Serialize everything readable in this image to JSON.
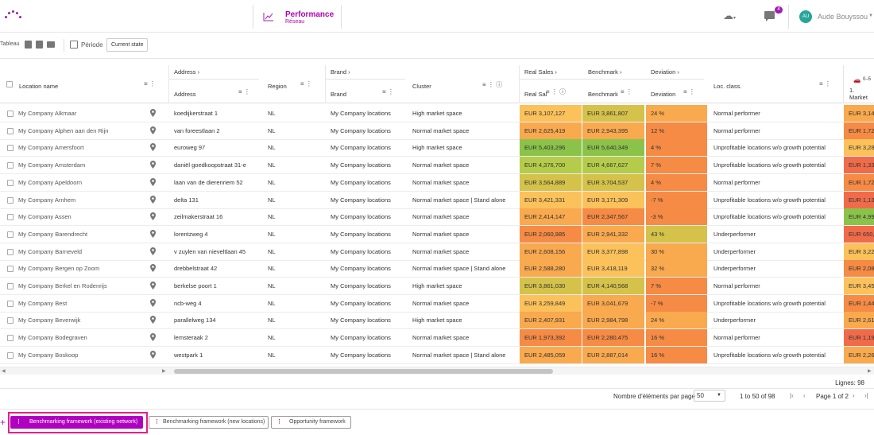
{
  "header": {
    "module_title": "Performance",
    "module_subtitle": "Réseau",
    "notification_count": "4",
    "user_initials": "AU",
    "user_name": "Aude Bouyssou"
  },
  "toolbar": {
    "tableau_label": "Tableau",
    "periode_label": "Période",
    "current_state": "Current state"
  },
  "grid": {
    "group_headers": {
      "address": "Address",
      "brand": "Brand",
      "real_sales": "Real Sales",
      "benchmark": "Benchmark",
      "deviation": "Deviation",
      "extra": "0–5",
      "extra2": "1. Market"
    },
    "columns": {
      "location_name": "Location name",
      "address": "Address",
      "region": "Region",
      "brand": "Brand",
      "cluster": "Cluster",
      "real_sal": "Real Sal",
      "benchmark": "Benchmark",
      "deviation": "Deviation",
      "loc_class": "Loc. class."
    },
    "colors": {
      "green_dark": "#8bc34a",
      "green_light": "#b5cc4a",
      "yellow": "#d4c24a",
      "orange_light": "#fbc15b",
      "orange": "#f9a94e",
      "orange_dark": "#f58b45",
      "red": "#f06b4a"
    },
    "rows": [
      {
        "name": "My Company Alkmaar",
        "address": "koedijkerstraat 1",
        "region": "NL",
        "brand": "My Company locations",
        "cluster": "High market space",
        "real": "EUR 3,107,127",
        "bench": "EUR 3,861,807",
        "dev": "24 %",
        "cls": "Normal performer",
        "extra": "EUR 3,14",
        "c_real": "#fbc15b",
        "c_bench": "#d4c24a",
        "c_dev": "#f9a94e",
        "c_extra": "#f9a94e"
      },
      {
        "name": "My Company Alphen aan den Rijn",
        "address": "van foreestlaan 2",
        "region": "NL",
        "brand": "My Company locations",
        "cluster": "Normal market space",
        "real": "EUR 2,625,419",
        "bench": "EUR 2,943,395",
        "dev": "12 %",
        "cls": "Normal performer",
        "extra": "EUR 1,72",
        "c_real": "#f9a94e",
        "c_bench": "#f9a94e",
        "c_dev": "#f58b45",
        "c_extra": "#f58b45"
      },
      {
        "name": "My Company Amersfoort",
        "address": "euroweg 97",
        "region": "NL",
        "brand": "My Company locations",
        "cluster": "High market space",
        "real": "EUR 5,403,296",
        "bench": "EUR 5,640,349",
        "dev": "4 %",
        "cls": "Unprofitable locations w/o growth potential",
        "extra": "EUR 3,28",
        "c_real": "#8bc34a",
        "c_bench": "#8bc34a",
        "c_dev": "#f58b45",
        "c_extra": "#fbc15b"
      },
      {
        "name": "My Company Amsterdam",
        "address": "daniël goedkoopstraat 31-e",
        "region": "NL",
        "brand": "My Company locations",
        "cluster": "Normal market space",
        "real": "EUR 4,376,700",
        "bench": "EUR 4,667,627",
        "dev": "7 %",
        "cls": "Unprofitable locations w/o growth potential",
        "extra": "EUR 1,33",
        "c_real": "#b5cc4a",
        "c_bench": "#b5cc4a",
        "c_dev": "#f58b45",
        "c_extra": "#f06b4a"
      },
      {
        "name": "My Company Apeldoorn",
        "address": "laan van de dierenriem 52",
        "region": "NL",
        "brand": "My Company locations",
        "cluster": "Normal market space",
        "real": "EUR 3,564,889",
        "bench": "EUR 3,704,537",
        "dev": "4 %",
        "cls": "Normal performer",
        "extra": "EUR 1,72",
        "c_real": "#d4c24a",
        "c_bench": "#d4c24a",
        "c_dev": "#f58b45",
        "c_extra": "#f58b45"
      },
      {
        "name": "My Company Arnhem",
        "address": "delta 131",
        "region": "NL",
        "brand": "My Company locations",
        "cluster": "Normal market space | Stand alone",
        "real": "EUR 3,421,331",
        "bench": "EUR 3,171,309",
        "dev": "-7 %",
        "cls": "Unprofitable locations w/o growth potential",
        "extra": "EUR 1,13",
        "c_real": "#fbc15b",
        "c_bench": "#fbc15b",
        "c_dev": "#f58b45",
        "c_extra": "#f06b4a"
      },
      {
        "name": "My Company Assen",
        "address": "zeilmakerstraat 16",
        "region": "NL",
        "brand": "My Company locations",
        "cluster": "Normal market space",
        "real": "EUR 2,414,147",
        "bench": "EUR 2,347,567",
        "dev": "-3 %",
        "cls": "Unprofitable locations w/o growth potential",
        "extra": "EUR 4,99",
        "c_real": "#f9a94e",
        "c_bench": "#f58b45",
        "c_dev": "#f58b45",
        "c_extra": "#8bc34a"
      },
      {
        "name": "My Company Barendrecht",
        "address": "lorentzweg 4",
        "region": "NL",
        "brand": "My Company locations",
        "cluster": "Normal market space",
        "real": "EUR 2,060,985",
        "bench": "EUR 2,941,332",
        "dev": "43 %",
        "cls": "Underperformer",
        "extra": "EUR 650,",
        "c_real": "#f58b45",
        "c_bench": "#f9a94e",
        "c_dev": "#d4c24a",
        "c_extra": "#f06b4a"
      },
      {
        "name": "My Company Barneveld",
        "address": "v zuylen van nieveltlaan 45",
        "region": "NL",
        "brand": "My Company locations",
        "cluster": "Normal market space",
        "real": "EUR 2,608,156",
        "bench": "EUR 3,377,898",
        "dev": "30 %",
        "cls": "Underperformer",
        "extra": "EUR 3,22",
        "c_real": "#f9a94e",
        "c_bench": "#fbc15b",
        "c_dev": "#f9a94e",
        "c_extra": "#fbc15b"
      },
      {
        "name": "My Company Bergen op Zoom",
        "address": "drebbelstraat 42",
        "region": "NL",
        "brand": "My Company locations",
        "cluster": "Normal market space | Stand alone",
        "real": "EUR 2,588,280",
        "bench": "EUR 3,418,119",
        "dev": "32 %",
        "cls": "Underperformer",
        "extra": "EUR 2,08",
        "c_real": "#f9a94e",
        "c_bench": "#fbc15b",
        "c_dev": "#f9a94e",
        "c_extra": "#f58b45"
      },
      {
        "name": "My Company Berkel en Rodenrijs",
        "address": "berkelse poort 1",
        "region": "NL",
        "brand": "My Company locations",
        "cluster": "High market space",
        "real": "EUR 3,861,030",
        "bench": "EUR 4,140,568",
        "dev": "7 %",
        "cls": "Normal performer",
        "extra": "EUR 3,45",
        "c_real": "#d4c24a",
        "c_bench": "#d4c24a",
        "c_dev": "#f58b45",
        "c_extra": "#fbc15b"
      },
      {
        "name": "My Company Best",
        "address": "ncb-weg 4",
        "region": "NL",
        "brand": "My Company locations",
        "cluster": "Normal market space",
        "real": "EUR 3,259,849",
        "bench": "EUR 3,041,679",
        "dev": "-7 %",
        "cls": "Unprofitable locations w/o growth potential",
        "extra": "EUR 1,44",
        "c_real": "#fbc15b",
        "c_bench": "#f9a94e",
        "c_dev": "#f58b45",
        "c_extra": "#f58b45"
      },
      {
        "name": "My Company Beverwijk",
        "address": "parallelweg 134",
        "region": "NL",
        "brand": "My Company locations",
        "cluster": "High market space",
        "real": "EUR 2,407,931",
        "bench": "EUR 2,984,798",
        "dev": "24 %",
        "cls": "Underperformer",
        "extra": "EUR 2,61",
        "c_real": "#f9a94e",
        "c_bench": "#f9a94e",
        "c_dev": "#f9a94e",
        "c_extra": "#f9a94e"
      },
      {
        "name": "My Company Bodegraven",
        "address": "lemsteraak 2",
        "region": "NL",
        "brand": "My Company locations",
        "cluster": "Normal market space",
        "real": "EUR 1,973,392",
        "bench": "EUR 2,280,475",
        "dev": "16 %",
        "cls": "Normal performer",
        "extra": "EUR 1,19",
        "c_real": "#f58b45",
        "c_bench": "#f58b45",
        "c_dev": "#f58b45",
        "c_extra": "#f06b4a"
      },
      {
        "name": "My Company Boskoop",
        "address": "westpark 1",
        "region": "NL",
        "brand": "My Company locations",
        "cluster": "Normal market space | Stand alone",
        "real": "EUR 2,485,059",
        "bench": "EUR 2,887,014",
        "dev": "16 %",
        "cls": "Unprofitable locations w/o growth potential",
        "extra": "EUR 2,26",
        "c_real": "#f9a94e",
        "c_bench": "#f9a94e",
        "c_dev": "#f58b45",
        "c_extra": "#f9a94e"
      }
    ]
  },
  "footer": {
    "lignes": "Lignes: 98",
    "per_page_label": "Nombre d'éléments par page",
    "per_page_value": "50",
    "range": "1 to 50 of 98",
    "page": "Page 1 of 2"
  },
  "tabs": [
    {
      "label": "Benchmarking framework (existing network)"
    },
    {
      "label": "Benchmarking framework (new locations)"
    },
    {
      "label": "Opportunity framework"
    }
  ]
}
